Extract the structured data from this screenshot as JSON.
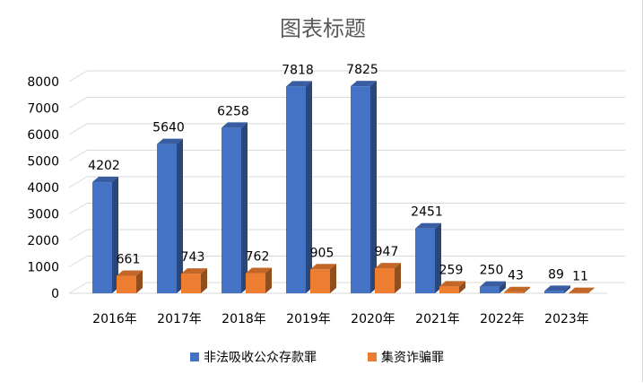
{
  "chart_data": {
    "type": "bar",
    "title": "图表标题",
    "categories": [
      "2016年",
      "2017年",
      "2018年",
      "2019年",
      "2020年",
      "2021年",
      "2022年",
      "2023年"
    ],
    "series": [
      {
        "name": "非法吸收公众存款罪",
        "values": [
          4202,
          5640,
          6258,
          7818,
          7825,
          2451,
          250,
          89
        ],
        "color": "#4472C4"
      },
      {
        "name": "集资诈骗罪",
        "values": [
          661,
          743,
          762,
          905,
          947,
          259,
          43,
          11
        ],
        "color": "#ED7D31"
      }
    ],
    "ylim": [
      0,
      8000
    ],
    "yticks": [
      0,
      1000,
      2000,
      3000,
      4000,
      5000,
      6000,
      7000,
      8000
    ],
    "grid": true,
    "legend": "bottom",
    "style": "3d-clustered-column"
  }
}
